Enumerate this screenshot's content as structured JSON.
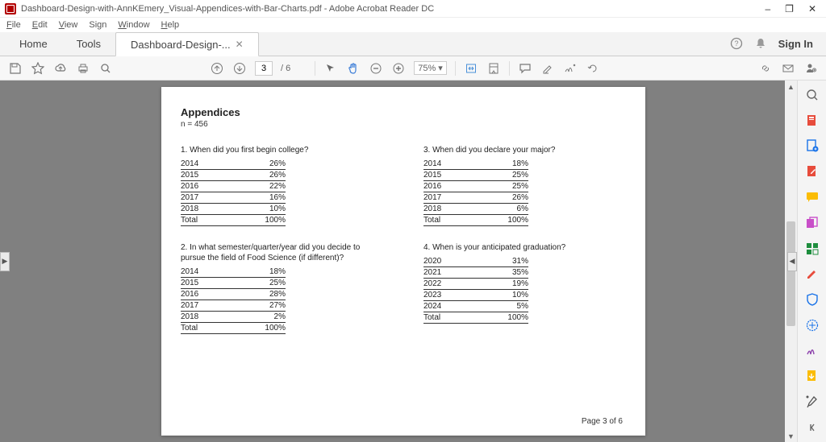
{
  "window": {
    "title": "Dashboard-Design-with-AnnKEmery_Visual-Appendices-with-Bar-Charts.pdf - Adobe Acrobat Reader DC",
    "minimize": "–",
    "maximize": "❐",
    "close": "✕"
  },
  "menubar": {
    "file": "File",
    "edit": "Edit",
    "view": "View",
    "sign": "Sign",
    "window": "Window",
    "help": "Help"
  },
  "tabs": {
    "home": "Home",
    "tools": "Tools",
    "doc": "Dashboard-Design-...",
    "signin": "Sign In"
  },
  "toolbar": {
    "page_current": "3",
    "page_total": "/ 6",
    "zoom": "75%"
  },
  "doc": {
    "heading": "Appendices",
    "n": "n = 456",
    "page_label": "Page 3 of 6",
    "questions": {
      "q1": {
        "title": "1. When did you first begin college?",
        "rows": [
          [
            "2014",
            "26%"
          ],
          [
            "2015",
            "26%"
          ],
          [
            "2016",
            "22%"
          ],
          [
            "2017",
            "16%"
          ],
          [
            "2018",
            "10%"
          ],
          [
            "Total",
            "100%"
          ]
        ]
      },
      "q2": {
        "title": "2. In what semester/quarter/year did you decide to pursue the field of Food Science (if different)?",
        "rows": [
          [
            "2014",
            "18%"
          ],
          [
            "2015",
            "25%"
          ],
          [
            "2016",
            "28%"
          ],
          [
            "2017",
            "27%"
          ],
          [
            "2018",
            "2%"
          ],
          [
            "Total",
            "100%"
          ]
        ]
      },
      "q3": {
        "title": "3. When did you declare your major?",
        "rows": [
          [
            "2014",
            "18%"
          ],
          [
            "2015",
            "25%"
          ],
          [
            "2016",
            "25%"
          ],
          [
            "2017",
            "26%"
          ],
          [
            "2018",
            "6%"
          ],
          [
            "Total",
            "100%"
          ]
        ]
      },
      "q4": {
        "title": "4. When is your anticipated graduation?",
        "rows": [
          [
            "2020",
            "31%"
          ],
          [
            "2021",
            "35%"
          ],
          [
            "2022",
            "19%"
          ],
          [
            "2023",
            "10%"
          ],
          [
            "2024",
            "5%"
          ],
          [
            "Total",
            "100%"
          ]
        ]
      }
    }
  },
  "colors": {
    "gray_bg": "#808080",
    "page_bg": "#ffffff",
    "border": "#333333",
    "accent_blue": "#1a73e8",
    "accent_red": "#d93025",
    "accent_green": "#1e8e3e",
    "accent_yellow": "#fbbc04",
    "accent_purple": "#8e44ad"
  }
}
